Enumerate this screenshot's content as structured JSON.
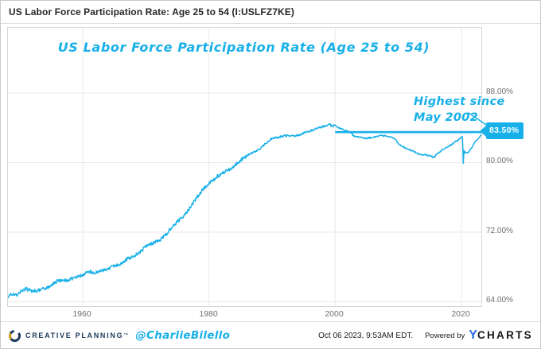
{
  "accent_color": "#18b0e9",
  "header": {
    "title": "US Labor Force Participation Rate: Age 25 to 54 (I:USLFZ7KE)"
  },
  "chart_data": {
    "type": "line",
    "title": "US Labor Force Participation Rate (Age 25 to 54)",
    "x_ticks": [
      "1960",
      "1980",
      "2000",
      "2020"
    ],
    "x_tick_values": [
      1960,
      1980,
      2000,
      2020
    ],
    "y_ticks": [
      "88.00%",
      "80.00%",
      "72.00%",
      "64.00%"
    ],
    "y_tick_values": [
      88,
      80,
      72,
      64
    ],
    "x_range": [
      1948.15,
      2023.7
    ],
    "y_axis_side": "right",
    "grid": true,
    "legend": false,
    "line_color": "#18b0e9",
    "reference_line": {
      "value": 83.5,
      "start_year": 2000,
      "label": "83.50%"
    },
    "annotation": {
      "lines": [
        "Highest since",
        "May 2002"
      ]
    },
    "last_value_label": "83.50%",
    "series": [
      {
        "name": "US Labor Force Participation Rate (Age 25 to 54)",
        "unit": "%",
        "points": [
          [
            1948.17,
            64.45
          ],
          [
            1948.6,
            64.8
          ],
          [
            1949,
            65.0
          ],
          [
            1949.5,
            64.7
          ],
          [
            1950,
            65.1
          ],
          [
            1951,
            65.5
          ],
          [
            1952,
            65.2
          ],
          [
            1953,
            65.3
          ],
          [
            1954,
            65.5
          ],
          [
            1955,
            65.9
          ],
          [
            1956,
            66.4
          ],
          [
            1957,
            66.4
          ],
          [
            1958,
            66.6
          ],
          [
            1959,
            66.8
          ],
          [
            1960,
            67.1
          ],
          [
            1961,
            67.5
          ],
          [
            1962,
            67.3
          ],
          [
            1963,
            67.6
          ],
          [
            1964,
            67.8
          ],
          [
            1965,
            68.1
          ],
          [
            1966,
            68.4
          ],
          [
            1967,
            68.9
          ],
          [
            1968,
            69.2
          ],
          [
            1969,
            69.7
          ],
          [
            1970,
            70.3
          ],
          [
            1971,
            70.7
          ],
          [
            1972,
            71.0
          ],
          [
            1973,
            71.6
          ],
          [
            1974,
            72.4
          ],
          [
            1975,
            73.2
          ],
          [
            1976,
            73.9
          ],
          [
            1977,
            74.8
          ],
          [
            1978,
            75.9
          ],
          [
            1979,
            76.9
          ],
          [
            1980,
            77.6
          ],
          [
            1981,
            78.2
          ],
          [
            1982,
            78.8
          ],
          [
            1983,
            79.1
          ],
          [
            1984,
            79.6
          ],
          [
            1985,
            80.3
          ],
          [
            1986,
            80.8
          ],
          [
            1987,
            81.2
          ],
          [
            1988,
            81.5
          ],
          [
            1989,
            82.2
          ],
          [
            1990,
            82.8
          ],
          [
            1991,
            82.9
          ],
          [
            1992,
            83.1
          ],
          [
            1993,
            83.1
          ],
          [
            1994,
            83.1
          ],
          [
            1995,
            83.4
          ],
          [
            1996,
            83.6
          ],
          [
            1997,
            83.9
          ],
          [
            1998,
            84.1
          ],
          [
            1999,
            84.4
          ],
          [
            1999.5,
            84.2
          ],
          [
            2000,
            84.3
          ],
          [
            2000.5,
            84.0
          ],
          [
            2001,
            83.9
          ],
          [
            2001.5,
            83.7
          ],
          [
            2002,
            83.6
          ],
          [
            2002.37,
            83.5
          ],
          [
            2003,
            83.0
          ],
          [
            2004,
            82.9
          ],
          [
            2004.5,
            82.8
          ],
          [
            2005,
            82.8
          ],
          [
            2006,
            82.9
          ],
          [
            2007,
            83.1
          ],
          [
            2008,
            83.1
          ],
          [
            2008.5,
            83.0
          ],
          [
            2009,
            82.9
          ],
          [
            2009.5,
            82.7
          ],
          [
            2010,
            82.2
          ],
          [
            2011,
            81.7
          ],
          [
            2012,
            81.4
          ],
          [
            2013,
            81.1
          ],
          [
            2013.5,
            80.9
          ],
          [
            2014,
            80.9
          ],
          [
            2015,
            80.8
          ],
          [
            2015.7,
            80.6
          ],
          [
            2016,
            80.9
          ],
          [
            2016.5,
            81.2
          ],
          [
            2017,
            81.5
          ],
          [
            2017.5,
            81.7
          ],
          [
            2018,
            81.9
          ],
          [
            2018.5,
            82.1
          ],
          [
            2019,
            82.4
          ],
          [
            2019.5,
            82.6
          ],
          [
            2020.08,
            83.0
          ],
          [
            2020.17,
            82.9
          ],
          [
            2020.29,
            79.9
          ],
          [
            2020.42,
            81.4
          ],
          [
            2020.58,
            81.1
          ],
          [
            2020.75,
            81.2
          ],
          [
            2021,
            81.1
          ],
          [
            2021.25,
            81.3
          ],
          [
            2021.5,
            81.6
          ],
          [
            2021.75,
            81.8
          ],
          [
            2022,
            82.2
          ],
          [
            2022.25,
            82.5
          ],
          [
            2022.5,
            82.6
          ],
          [
            2022.75,
            82.8
          ],
          [
            2023,
            83.1
          ],
          [
            2023.25,
            83.3
          ],
          [
            2023.5,
            83.4
          ],
          [
            2023.7,
            83.5
          ]
        ]
      }
    ]
  },
  "footer": {
    "brand": "CREATIVE PLANNING",
    "brand_tm": "™",
    "handle": "@CharlieBilello",
    "date": "Oct 06 2023, 9:53AM EDT.",
    "powered_by": "Powered by",
    "ycharts_y": "Y",
    "ycharts_charts": "CHARTS"
  }
}
